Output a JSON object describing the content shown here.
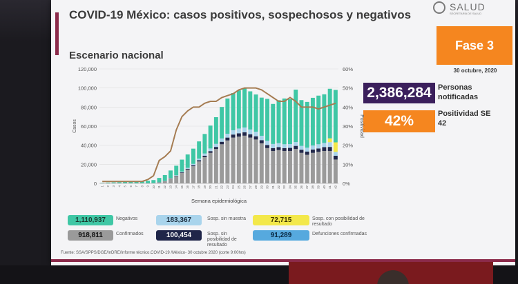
{
  "title": "COVID-19 México: casos positivos, sospechosos y negativos",
  "subtitle": "Escenario nacional",
  "logo": {
    "text": "SALUD",
    "sub": "SECRETARÍA DE SALUD"
  },
  "phase": {
    "label": "Fase 3",
    "date": "30 octubre, 2020"
  },
  "kpis": {
    "notified_value": "2,386,284",
    "notified_label": "Personas notificadas",
    "positivity_value": "42%",
    "positivity_label": "Positividad SE 42"
  },
  "legend": [
    {
      "value": "1,110,937",
      "label": "Negativos",
      "color": "#3fc7a5",
      "text": "#1a3a30"
    },
    {
      "value": "183,367",
      "label": "Sosp. sin muestra",
      "color": "#a9d4ec",
      "text": "#1d2f40"
    },
    {
      "value": "72,715",
      "label": "Sosp. con posibilidad de resultado",
      "color": "#f3e84a",
      "text": "#3a3500"
    },
    {
      "value": "918,811",
      "label": "Confirmados",
      "color": "#9a9a9a",
      "text": "#111"
    },
    {
      "value": "100,454",
      "label": "Sosp. sin posibilidad de resultado",
      "color": "#1f2549",
      "text": "#fff"
    },
    {
      "value": "91,289",
      "label": "Defunciones confirmadas",
      "color": "#56a9de",
      "text": "#0a2a44"
    }
  ],
  "source": "Fuente: SSA/SPPS/DGE/InDRE/Informe técnico.COVID-19 /México- 30 octubre 2020 (corte 9:00hrs)",
  "colors": {
    "confirmados": "#9a9a9a",
    "sin_posibilidad": "#22284a",
    "sin_muestra": "#a9d4ec",
    "negativos": "#3fc7a5",
    "con_posibilidad": "#f3e84a",
    "positividad_line": "#a57c52"
  },
  "chart_data": {
    "type": "bar",
    "xlabel": "Semana epidemiológica",
    "ylabel": "Casos",
    "y2label": "Positividad",
    "ylim": [
      0,
      120000
    ],
    "y2lim": [
      0,
      0.6
    ],
    "yticks": [
      "0",
      "20,000",
      "40,000",
      "60,000",
      "80,000",
      "100,000",
      "120,000"
    ],
    "y2ticks": [
      "0%",
      "10%",
      "20%",
      "30%",
      "40%",
      "50%",
      "60%"
    ],
    "categories": [
      "1",
      "2",
      "3",
      "4",
      "5",
      "6",
      "7",
      "8",
      "9",
      "10",
      "11",
      "12",
      "13",
      "14",
      "15",
      "16",
      "17",
      "18",
      "19",
      "20",
      "21",
      "22",
      "23",
      "24",
      "25",
      "26",
      "27",
      "28",
      "29",
      "30",
      "31",
      "32",
      "33",
      "34",
      "35",
      "36",
      "37",
      "38",
      "39",
      "40",
      "41",
      "42"
    ],
    "series": [
      {
        "name": "Confirmados",
        "values": [
          0,
          0,
          0,
          0,
          0,
          0,
          0,
          0,
          50,
          200,
          900,
          2200,
          4800,
          7500,
          11000,
          14500,
          18000,
          23000,
          27500,
          32000,
          36000,
          41000,
          45000,
          48000,
          49000,
          50000,
          48000,
          46000,
          42000,
          37000,
          34000,
          35000,
          34000,
          34000,
          36000,
          32000,
          30000,
          32000,
          33000,
          34000,
          34000,
          25000
        ]
      },
      {
        "name": "Sosp. sin posibilidad de resultado",
        "values": [
          0,
          0,
          0,
          0,
          0,
          0,
          0,
          0,
          0,
          0,
          100,
          200,
          300,
          400,
          600,
          800,
          1000,
          1200,
          1500,
          1800,
          2200,
          2600,
          3000,
          3200,
          3500,
          3600,
          3500,
          3400,
          3300,
          3200,
          3000,
          3000,
          3000,
          3200,
          3300,
          3300,
          3400,
          3500,
          3600,
          4000,
          4200,
          4000
        ]
      },
      {
        "name": "Sosp. sin muestra",
        "values": [
          0,
          0,
          0,
          0,
          0,
          0,
          0,
          0,
          0,
          50,
          200,
          300,
          400,
          600,
          800,
          1000,
          1400,
          1800,
          2300,
          2800,
          3200,
          3500,
          4000,
          4500,
          5000,
          5000,
          5000,
          4800,
          4600,
          4400,
          4300,
          4200,
          4000,
          4000,
          4000,
          4000,
          4000,
          4200,
          4400,
          4400,
          5000,
          4000
        ]
      },
      {
        "name": "Sosp. con posibilidad de resultado",
        "values": [
          0,
          0,
          0,
          0,
          0,
          0,
          0,
          0,
          0,
          0,
          0,
          0,
          0,
          0,
          0,
          0,
          0,
          0,
          0,
          0,
          0,
          0,
          0,
          0,
          0,
          0,
          0,
          0,
          0,
          0,
          0,
          0,
          0,
          0,
          0,
          0,
          0,
          0,
          0,
          0,
          4000,
          10000
        ]
      },
      {
        "name": "Negativos",
        "values": [
          500,
          800,
          1000,
          1200,
          1500,
          1800,
          2000,
          2200,
          2600,
          3200,
          4500,
          6000,
          8000,
          10000,
          12500,
          14000,
          16000,
          18000,
          20500,
          24000,
          28000,
          33000,
          37000,
          39000,
          40000,
          41000,
          40000,
          39000,
          40000,
          44000,
          42000,
          45000,
          48000,
          47000,
          55000,
          48000,
          48000,
          50000,
          51000,
          51000,
          52000,
          55000
        ]
      }
    ],
    "positivity": [
      0.01,
      0.01,
      0.01,
      0.01,
      0.01,
      0.01,
      0.01,
      0.01,
      0.02,
      0.04,
      0.12,
      0.14,
      0.17,
      0.28,
      0.35,
      0.38,
      0.4,
      0.4,
      0.42,
      0.43,
      0.43,
      0.45,
      0.46,
      0.47,
      0.49,
      0.5,
      0.5,
      0.5,
      0.49,
      0.47,
      0.45,
      0.43,
      0.43,
      0.45,
      0.43,
      0.4,
      0.4,
      0.4,
      0.39,
      0.4,
      0.41,
      0.42
    ],
    "legend_position": "bottom"
  }
}
